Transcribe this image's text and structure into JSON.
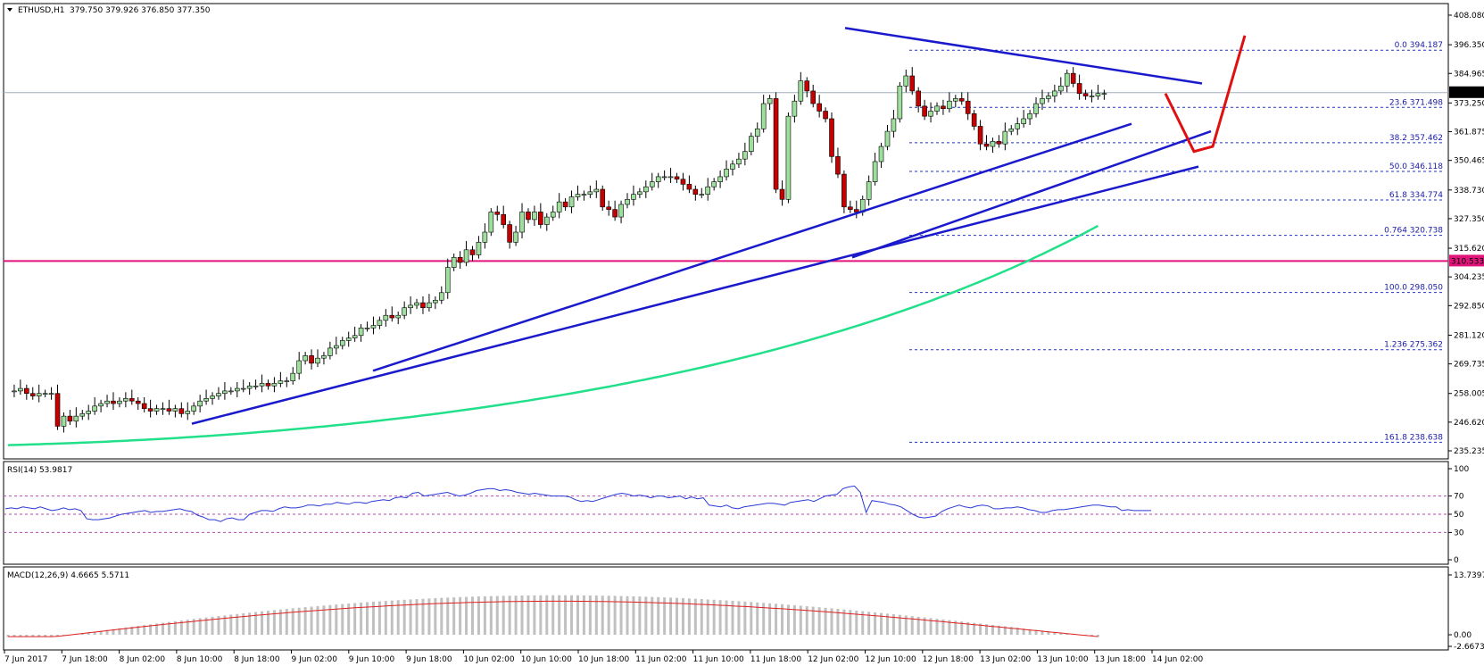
{
  "chart_data": {
    "type": "candlestick",
    "symbol_header": "ETHUSD,H1",
    "ohlc_header": "379.750 379.926 376.850 377.350",
    "price_axis": {
      "ticks": [
        "408.080",
        "396.350",
        "384.965",
        "373.250",
        "361.875",
        "350.465",
        "338.730",
        "327.350",
        "315.620",
        "304.235",
        "292.850",
        "281.120",
        "269.735",
        "258.005",
        "246.620",
        "235.235"
      ],
      "range": [
        235.235,
        408.08
      ]
    },
    "current_price": "377.350",
    "horizontal_line_price": "310.533",
    "fibonacci": [
      {
        "level": "0.0",
        "price": "394.187"
      },
      {
        "level": "23.6",
        "price": "371.498"
      },
      {
        "level": "38.2",
        "price": "357.462"
      },
      {
        "level": "50.0",
        "price": "346.118"
      },
      {
        "level": "61.8",
        "price": "334.774"
      },
      {
        "level": "0.764",
        "price": "320.738"
      },
      {
        "level": "100.0",
        "price": "298.050"
      },
      {
        "level": "1.236",
        "price": "275.362"
      },
      {
        "level": "161.8",
        "price": "238.638"
      }
    ],
    "time_labels": [
      "7 Jun 2017",
      "7 Jun 18:00",
      "8 Jun 02:00",
      "8 Jun 10:00",
      "8 Jun 18:00",
      "9 Jun 02:00",
      "9 Jun 10:00",
      "9 Jun 18:00",
      "10 Jun 02:00",
      "10 Jun 10:00",
      "10 Jun 18:00",
      "11 Jun 02:00",
      "11 Jun 10:00",
      "11 Jun 18:00",
      "12 Jun 02:00",
      "12 Jun 10:00",
      "12 Jun 18:00",
      "13 Jun 02:00",
      "13 Jun 10:00",
      "13 Jun 18:00",
      "14 Jun 02:00"
    ],
    "close_path": [
      [
        0,
        259
      ],
      [
        1,
        259
      ],
      [
        2,
        260
      ],
      [
        3,
        258
      ],
      [
        4,
        257
      ],
      [
        5,
        258
      ],
      [
        6,
        258
      ],
      [
        7,
        258
      ],
      [
        8,
        245
      ],
      [
        9,
        249
      ],
      [
        10,
        247
      ],
      [
        11,
        249
      ],
      [
        12,
        250
      ],
      [
        13,
        251
      ],
      [
        14,
        253
      ],
      [
        15,
        254
      ],
      [
        16,
        255
      ],
      [
        17,
        254
      ],
      [
        18,
        255
      ],
      [
        19,
        256
      ],
      [
        20,
        255
      ],
      [
        21,
        254
      ],
      [
        22,
        252
      ],
      [
        23,
        251
      ],
      [
        24,
        252
      ],
      [
        25,
        252
      ],
      [
        26,
        251
      ],
      [
        27,
        252
      ],
      [
        28,
        250
      ],
      [
        29,
        251
      ],
      [
        30,
        253
      ],
      [
        31,
        255
      ],
      [
        32,
        256
      ],
      [
        33,
        257
      ],
      [
        34,
        258
      ],
      [
        35,
        259
      ],
      [
        36,
        259
      ],
      [
        37,
        260
      ],
      [
        38,
        260
      ],
      [
        39,
        261
      ],
      [
        40,
        261
      ],
      [
        41,
        262
      ],
      [
        42,
        261
      ],
      [
        43,
        262
      ],
      [
        44,
        263
      ],
      [
        45,
        263
      ],
      [
        46,
        266
      ],
      [
        47,
        271
      ],
      [
        48,
        273
      ],
      [
        49,
        270
      ],
      [
        50,
        272
      ],
      [
        51,
        273
      ],
      [
        52,
        276
      ],
      [
        53,
        277
      ],
      [
        54,
        279
      ],
      [
        55,
        280
      ],
      [
        56,
        281
      ],
      [
        57,
        284
      ],
      [
        58,
        284
      ],
      [
        59,
        285
      ],
      [
        60,
        287
      ],
      [
        61,
        289
      ],
      [
        62,
        288
      ],
      [
        63,
        289
      ],
      [
        64,
        292
      ],
      [
        65,
        293
      ],
      [
        66,
        294
      ],
      [
        67,
        292
      ],
      [
        68,
        294
      ],
      [
        69,
        295
      ],
      [
        70,
        298
      ],
      [
        71,
        308
      ],
      [
        72,
        312
      ],
      [
        73,
        310
      ],
      [
        74,
        315
      ],
      [
        75,
        313
      ],
      [
        76,
        318
      ],
      [
        77,
        322
      ],
      [
        78,
        330
      ],
      [
        79,
        329
      ],
      [
        80,
        325
      ],
      [
        81,
        318
      ],
      [
        82,
        322
      ],
      [
        83,
        330
      ],
      [
        84,
        327
      ],
      [
        85,
        330
      ],
      [
        86,
        325
      ],
      [
        87,
        328
      ],
      [
        88,
        330
      ],
      [
        89,
        334
      ],
      [
        90,
        332
      ],
      [
        91,
        336
      ],
      [
        92,
        337
      ],
      [
        93,
        337
      ],
      [
        94,
        338
      ],
      [
        95,
        339
      ],
      [
        96,
        332
      ],
      [
        97,
        331
      ],
      [
        98,
        328
      ],
      [
        99,
        333
      ],
      [
        100,
        335
      ],
      [
        101,
        337
      ],
      [
        102,
        338
      ],
      [
        103,
        340
      ],
      [
        104,
        342
      ],
      [
        105,
        344
      ],
      [
        106,
        344
      ],
      [
        107,
        344
      ],
      [
        108,
        343
      ],
      [
        109,
        341
      ],
      [
        110,
        339
      ],
      [
        111,
        337
      ],
      [
        112,
        337
      ],
      [
        113,
        340
      ],
      [
        114,
        342
      ],
      [
        115,
        344
      ],
      [
        116,
        347
      ],
      [
        117,
        349
      ],
      [
        118,
        351
      ],
      [
        119,
        354
      ],
      [
        120,
        360
      ],
      [
        121,
        363
      ],
      [
        122,
        373
      ],
      [
        123,
        375
      ],
      [
        124,
        339
      ],
      [
        125,
        335
      ],
      [
        126,
        368
      ],
      [
        127,
        374
      ],
      [
        128,
        382
      ],
      [
        129,
        378
      ],
      [
        130,
        373
      ],
      [
        131,
        370
      ],
      [
        132,
        367
      ],
      [
        133,
        352
      ],
      [
        134,
        345
      ],
      [
        135,
        332
      ],
      [
        136,
        331
      ],
      [
        137,
        330
      ],
      [
        138,
        335
      ],
      [
        139,
        342
      ],
      [
        140,
        350
      ],
      [
        141,
        356
      ],
      [
        142,
        362
      ],
      [
        143,
        367
      ],
      [
        144,
        380
      ],
      [
        145,
        384
      ],
      [
        146,
        378
      ],
      [
        147,
        372
      ],
      [
        148,
        368
      ],
      [
        149,
        370
      ],
      [
        150,
        372
      ],
      [
        151,
        371
      ],
      [
        152,
        374
      ],
      [
        153,
        375
      ],
      [
        154,
        374
      ],
      [
        155,
        369
      ],
      [
        156,
        364
      ],
      [
        157,
        357
      ],
      [
        158,
        356
      ],
      [
        159,
        358
      ],
      [
        160,
        357
      ],
      [
        161,
        362
      ],
      [
        162,
        363
      ],
      [
        163,
        365
      ],
      [
        164,
        367
      ],
      [
        165,
        369
      ],
      [
        166,
        373
      ],
      [
        167,
        375
      ],
      [
        168,
        376
      ],
      [
        169,
        378
      ],
      [
        170,
        380
      ],
      [
        171,
        385
      ],
      [
        172,
        381
      ],
      [
        173,
        377
      ],
      [
        174,
        376
      ],
      [
        175,
        376
      ],
      [
        176,
        377
      ],
      [
        177,
        377
      ]
    ],
    "rsi": {
      "label": "RSI(14) 53.9817",
      "ticks": [
        "100",
        "70",
        "50",
        "30",
        "0"
      ],
      "values": [
        56,
        57,
        56,
        58,
        57,
        56,
        58,
        56,
        54,
        55,
        57,
        55,
        56,
        54,
        45,
        44,
        44,
        45,
        46,
        48,
        50,
        51,
        52,
        53,
        54,
        52,
        53,
        53,
        54,
        55,
        56,
        54,
        53,
        49,
        47,
        44,
        44,
        42,
        45,
        46,
        44,
        44,
        50,
        52,
        54,
        54,
        53,
        56,
        58,
        57,
        57,
        58,
        60,
        60,
        59,
        61,
        61,
        63,
        62,
        61,
        63,
        63,
        62,
        64,
        65,
        66,
        65,
        68,
        69,
        68,
        73,
        74,
        70,
        71,
        72,
        73,
        74,
        72,
        70,
        71,
        73,
        76,
        77,
        78,
        78,
        76,
        77,
        76,
        74,
        73,
        72,
        73,
        72,
        71,
        70,
        70,
        70,
        69,
        66,
        64,
        65,
        64,
        66,
        68,
        70,
        72,
        73,
        72,
        70,
        71,
        70,
        68,
        70,
        70,
        68,
        69,
        70,
        67,
        69,
        67,
        68,
        60,
        59,
        58,
        60,
        57,
        56,
        58,
        59,
        60,
        61,
        62,
        62,
        61,
        60,
        63,
        64,
        65,
        66,
        64,
        67,
        70,
        71,
        72,
        78,
        80,
        81,
        74,
        52,
        65,
        64,
        63,
        61,
        60,
        58,
        54,
        50,
        47,
        46,
        47,
        48,
        53,
        56,
        58,
        60,
        58,
        57,
        59,
        60,
        59,
        56,
        56,
        57,
        57,
        58,
        57,
        55,
        54,
        52,
        52,
        54,
        55,
        55,
        56,
        57,
        58,
        59,
        60,
        60,
        59,
        58,
        58,
        54,
        55,
        54,
        54,
        54,
        54
      ]
    },
    "macd": {
      "label": "MACD(12,26,9) 4.6665 5.5711",
      "ticks": [
        "13.7397",
        "0.00",
        "-2.6673"
      ],
      "range": [
        -2.6673,
        13.7397
      ]
    }
  }
}
